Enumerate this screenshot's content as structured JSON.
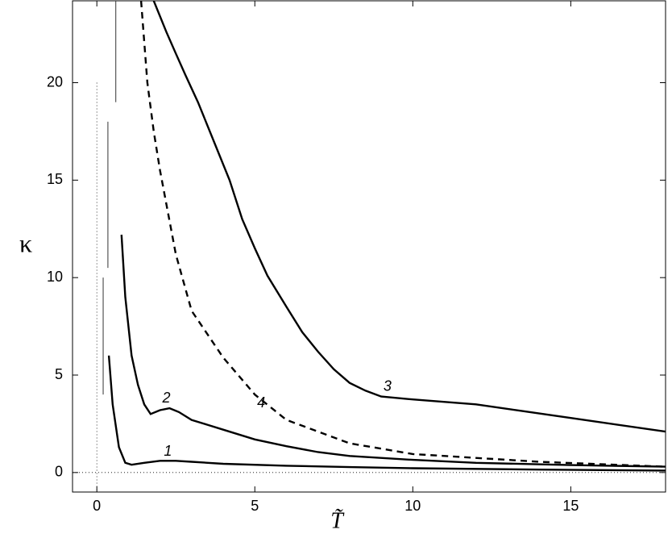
{
  "chart_data": {
    "type": "line",
    "x_label": "T̃",
    "y_label": "κ",
    "xlim": [
      -0.77,
      18
    ],
    "ylim": [
      -1,
      24.2
    ],
    "xticks": [
      0,
      5,
      10,
      15
    ],
    "yticks": [
      0,
      5,
      10,
      15,
      20
    ],
    "series": [
      {
        "name": "1",
        "color": "#000000",
        "dashed": false,
        "x": [
          0.38,
          0.5,
          0.7,
          0.9,
          1.1,
          1.5,
          2.0,
          2.5,
          3,
          4,
          6,
          8,
          10,
          14,
          18
        ],
        "values": [
          6,
          3.5,
          1.3,
          0.5,
          0.4,
          0.5,
          0.6,
          0.6,
          0.55,
          0.45,
          0.35,
          0.28,
          0.22,
          0.15,
          0.1
        ]
      },
      {
        "name": "2",
        "color": "#000000",
        "dashed": false,
        "x": [
          0.78,
          0.9,
          1.1,
          1.3,
          1.5,
          1.7,
          2.0,
          2.3,
          2.6,
          3.0,
          3.5,
          4,
          5,
          6,
          7,
          8,
          10,
          12,
          15,
          18
        ],
        "values": [
          12.2,
          9,
          6,
          4.5,
          3.5,
          3.0,
          3.2,
          3.3,
          3.1,
          2.7,
          2.45,
          2.2,
          1.7,
          1.35,
          1.05,
          0.85,
          0.65,
          0.5,
          0.38,
          0.3
        ]
      },
      {
        "name": "3",
        "color": "#000000",
        "dashed": false,
        "x": [
          1.8,
          2.2,
          2.5,
          2.8,
          3.2,
          3.7,
          4.2,
          4.6,
          5,
          5.4,
          6,
          6.5,
          7,
          7.5,
          8,
          8.5,
          9,
          10,
          12,
          15,
          18
        ],
        "values": [
          24.2,
          22.6,
          21.5,
          20.4,
          19.0,
          17.0,
          15.0,
          13.0,
          11.5,
          10.1,
          8.5,
          7.2,
          6.2,
          5.3,
          4.6,
          4.2,
          3.9,
          3.75,
          3.5,
          2.8,
          2.1
        ]
      },
      {
        "name": "4",
        "color": "#000000",
        "dashed": true,
        "x": [
          1.4,
          1.6,
          1.8,
          2.0,
          2.5,
          3,
          4,
          5,
          6,
          8,
          10,
          14,
          18
        ],
        "values": [
          24.2,
          20,
          17.5,
          15.5,
          11.2,
          8.3,
          5.9,
          4.0,
          2.7,
          1.5,
          0.95,
          0.55,
          0.3
        ]
      }
    ],
    "segments": [
      {
        "x": 0.2,
        "y": [
          4,
          10
        ]
      },
      {
        "x": 0.35,
        "y": [
          10.5,
          18
        ]
      },
      {
        "x": 0.6,
        "y": [
          19,
          24.2
        ]
      }
    ]
  }
}
